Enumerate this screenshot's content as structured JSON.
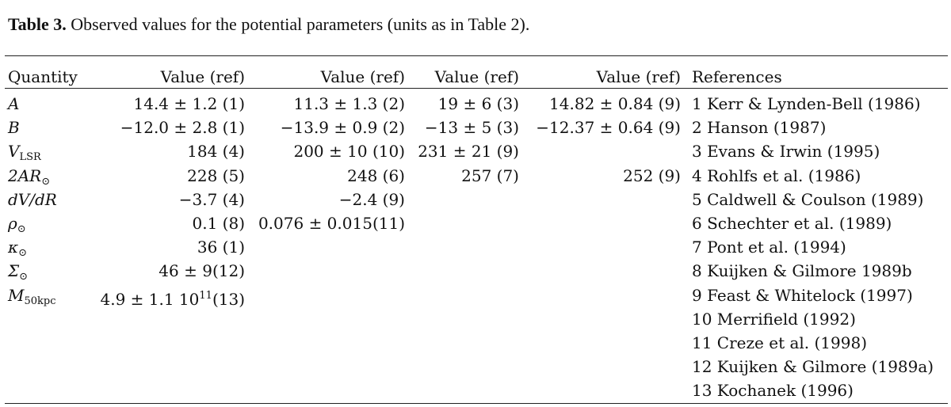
{
  "caption": {
    "label": "Table 3.",
    "text": " Observed values for the potential parameters (units as in Table 2)."
  },
  "headers": [
    "Quantity",
    "Value (ref)",
    "Value (ref)",
    "Value (ref)",
    "Value (ref)",
    "References"
  ],
  "rows": [
    {
      "q_main": "A",
      "q_sub": "",
      "v1": "14.4 ± 1.2 (1)",
      "v2": "11.3 ± 1.3 (2)",
      "v3": "19 ± 6 (3)",
      "v4": "14.82 ± 0.84 (9)",
      "ref": "1 Kerr & Lynden-Bell (1986)"
    },
    {
      "q_main": "B",
      "q_sub": "",
      "v1": "−12.0 ± 2.8 (1)",
      "v2": "−13.9 ± 0.9 (2)",
      "v3": "−13 ± 5 (3)",
      "v4": "−12.37 ± 0.64 (9)",
      "ref": "2 Hanson (1987)"
    },
    {
      "q_main": "V",
      "q_sub": "LSR",
      "v1": "184 (4)",
      "v2": "200 ± 10 (10)",
      "v3": "231 ± 21 (9)",
      "v4": "",
      "ref": "3 Evans & Irwin (1995)"
    },
    {
      "q_main": "2AR",
      "q_sub": "⊙",
      "v1": "228 (5)",
      "v2": "248 (6)",
      "v3": "257 (7)",
      "v4": "252 (9)",
      "ref": "4 Rohlfs et al. (1986)"
    },
    {
      "q_main": "dV/dR",
      "q_sub": "",
      "v1": "−3.7 (4)",
      "v2": "−2.4 (9)",
      "v3": "",
      "v4": "",
      "ref": "5 Caldwell & Coulson (1989)"
    },
    {
      "q_main": "ρ",
      "q_sub": "⊙",
      "v1": "0.1 (8)",
      "v2": "0.076 ± 0.015(11)",
      "v3": "",
      "v4": "",
      "ref": "6 Schechter et al. (1989)"
    },
    {
      "q_main": "κ",
      "q_sub": "⊙",
      "v1": "36 (1)",
      "v2": "",
      "v3": "",
      "v4": "",
      "ref": "7 Pont et al. (1994)"
    },
    {
      "q_main": "Σ",
      "q_sub": "⊙",
      "v1": "46 ± 9(12)",
      "v2": "",
      "v3": "",
      "v4": "",
      "ref": "8 Kuijken & Gilmore 1989b"
    },
    {
      "q_main": "M",
      "q_sub": "50kpc",
      "v1_main": "4.9 ± 1.1 10",
      "v1_sup": "11",
      "v1_tail": "(13)",
      "v2": "",
      "v3": "",
      "v4": "",
      "ref": "9 Feast & Whitelock (1997)"
    },
    {
      "q_main": "",
      "q_sub": "",
      "v1": "",
      "v2": "",
      "v3": "",
      "v4": "",
      "ref": "10 Merrifield (1992)"
    },
    {
      "q_main": "",
      "q_sub": "",
      "v1": "",
      "v2": "",
      "v3": "",
      "v4": "",
      "ref": "11 Creze et al. (1998)"
    },
    {
      "q_main": "",
      "q_sub": "",
      "v1": "",
      "v2": "",
      "v3": "",
      "v4": "",
      "ref": "12 Kuijken & Gilmore (1989a)"
    },
    {
      "q_main": "",
      "q_sub": "",
      "v1": "",
      "v2": "",
      "v3": "",
      "v4": "",
      "ref": "13 Kochanek (1996)"
    }
  ]
}
